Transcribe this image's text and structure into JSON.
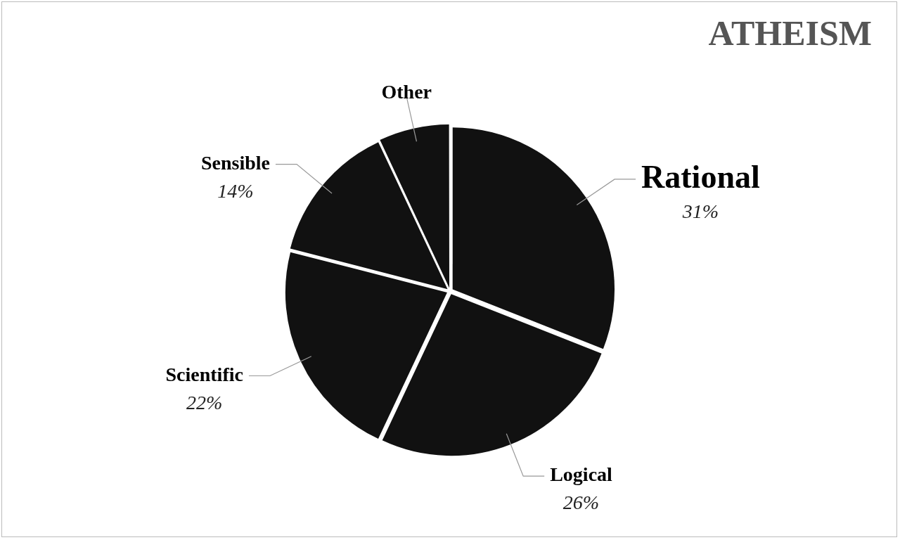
{
  "chart_data": {
    "type": "pie",
    "title": "ATHEISM",
    "categories": [
      "Rational",
      "Logical",
      "Scientific",
      "Sensible",
      "Other"
    ],
    "values": [
      31,
      26,
      22,
      14,
      7
    ],
    "colors": [
      "#111111",
      "#111111",
      "#111111",
      "#111111",
      "#111111"
    ],
    "value_labels": [
      "31%",
      "26%",
      "22%",
      "14%",
      null
    ]
  }
}
